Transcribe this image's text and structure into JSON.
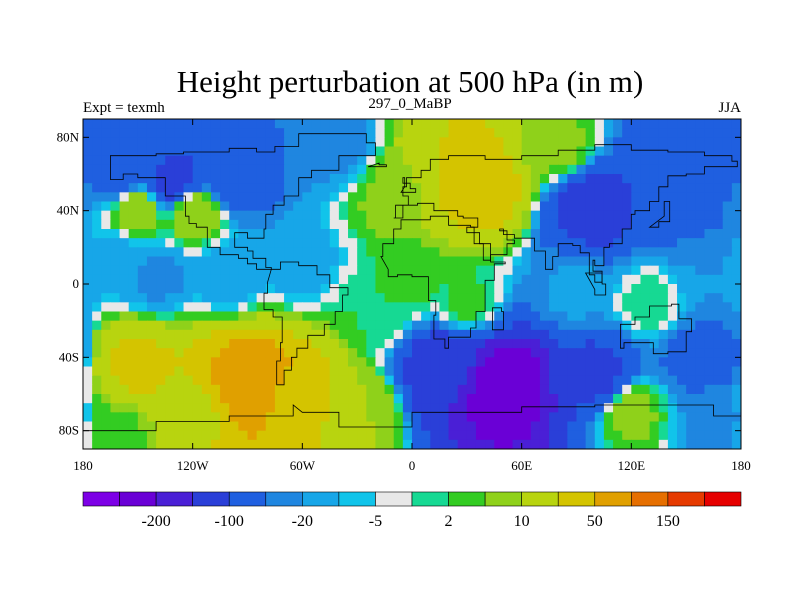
{
  "chart_data": {
    "type": "heatmap",
    "title": "Height perturbation at 500 hPa (in m)",
    "subtitle_left": "Expt = texmh",
    "subtitle_center": "297_0_MaBP",
    "subtitle_right": "JJA",
    "xlim": [
      -180,
      180
    ],
    "ylim": [
      -90,
      90
    ],
    "xticks": [
      {
        "value": -180,
        "label": "180"
      },
      {
        "value": -120,
        "label": "120W"
      },
      {
        "value": -60,
        "label": "60W"
      },
      {
        "value": 0,
        "label": "0"
      },
      {
        "value": 60,
        "label": "60E"
      },
      {
        "value": 120,
        "label": "120E"
      },
      {
        "value": 180,
        "label": "180"
      }
    ],
    "yticks": [
      {
        "value": 80,
        "label": "80N"
      },
      {
        "value": 40,
        "label": "40N"
      },
      {
        "value": 0,
        "label": "0"
      },
      {
        "value": -40,
        "label": "40S"
      },
      {
        "value": -80,
        "label": "80S"
      }
    ],
    "colorbar": {
      "colors": [
        "#7d00e6",
        "#6a00d6",
        "#4a1fd6",
        "#2a3fd8",
        "#1f5fe0",
        "#1f86e0",
        "#17a6e8",
        "#11c4ea",
        "#e8e8e8",
        "#16d993",
        "#33cc22",
        "#8fd11a",
        "#b8d40f",
        "#d4c400",
        "#e0a000",
        "#e66f00",
        "#e63a00",
        "#e60000"
      ],
      "labels": [
        {
          "index": 1,
          "text": "-200"
        },
        {
          "index": 3,
          "text": "-100"
        },
        {
          "index": 5,
          "text": "-20"
        },
        {
          "index": 7,
          "text": "-5"
        },
        {
          "index": 9,
          "text": "2"
        },
        {
          "index": 11,
          "text": "10"
        },
        {
          "index": 13,
          "text": "50"
        },
        {
          "index": 15,
          "text": "150"
        }
      ]
    },
    "anomalies": [
      {
        "lon": -160,
        "lat": 15,
        "value": -6
      },
      {
        "lon": -140,
        "lat": 5,
        "value": -12
      },
      {
        "lon": -100,
        "lat": 5,
        "value": -8
      },
      {
        "lon": -60,
        "lat": 10,
        "value": -7
      },
      {
        "lon": -130,
        "lat": 55,
        "value": -60
      },
      {
        "lon": -100,
        "lat": 60,
        "value": -40
      },
      {
        "lon": -160,
        "lat": 60,
        "value": -25
      },
      {
        "lon": -120,
        "lat": 40,
        "value": 20
      },
      {
        "lon": -150,
        "lat": 40,
        "value": 15
      },
      {
        "lon": -10,
        "lat": 50,
        "value": 12
      },
      {
        "lon": 35,
        "lat": 55,
        "value": 80
      },
      {
        "lon": 20,
        "lat": 65,
        "value": 50
      },
      {
        "lon": 80,
        "lat": 75,
        "value": 12
      },
      {
        "lon": 100,
        "lat": 42,
        "value": -70
      },
      {
        "lon": 150,
        "lat": 40,
        "value": -25
      },
      {
        "lon": 140,
        "lat": 70,
        "value": -25
      },
      {
        "lon": -40,
        "lat": 75,
        "value": -12
      },
      {
        "lon": 0,
        "lat": 0,
        "value": 6
      },
      {
        "lon": 30,
        "lat": -10,
        "value": 6
      },
      {
        "lon": -20,
        "lat": -15,
        "value": 5
      },
      {
        "lon": 90,
        "lat": -5,
        "value": -8
      },
      {
        "lon": 130,
        "lat": -10,
        "value": 4
      },
      {
        "lon": 160,
        "lat": 5,
        "value": -10
      },
      {
        "lon": -90,
        "lat": -55,
        "value": 150
      },
      {
        "lon": -65,
        "lat": -65,
        "value": 90
      },
      {
        "lon": -150,
        "lat": -45,
        "value": 55
      },
      {
        "lon": -120,
        "lat": -70,
        "value": 40
      },
      {
        "lon": -30,
        "lat": -70,
        "value": 20
      },
      {
        "lon": 50,
        "lat": -55,
        "value": -200
      },
      {
        "lon": 20,
        "lat": -45,
        "value": -90
      },
      {
        "lon": 100,
        "lat": -50,
        "value": -60
      },
      {
        "lon": 120,
        "lat": -70,
        "value": 12
      },
      {
        "lon": 160,
        "lat": -40,
        "value": -30
      },
      {
        "lon": 165,
        "lat": -75,
        "value": -12
      },
      {
        "lon": -160,
        "lat": -80,
        "value": 8
      }
    ],
    "continents": [
      [
        [
          -165,
          70
        ],
        [
          -140,
          71
        ],
        [
          -125,
          72
        ],
        [
          -100,
          74
        ],
        [
          -85,
          72
        ],
        [
          -75,
          75
        ],
        [
          -62,
          82
        ],
        [
          -45,
          82
        ],
        [
          -25,
          77
        ],
        [
          -20,
          70
        ],
        [
          -40,
          62
        ],
        [
          -55,
          58
        ],
        [
          -62,
          48
        ],
        [
          -70,
          43
        ],
        [
          -76,
          38
        ],
        [
          -80,
          30
        ],
        [
          -81,
          25
        ],
        [
          -90,
          28
        ],
        [
          -97,
          26
        ],
        [
          -97,
          20
        ],
        [
          -90,
          18
        ],
        [
          -87,
          14
        ],
        [
          -80,
          9
        ],
        [
          -77,
          8
        ],
        [
          -85,
          11
        ],
        [
          -90,
          14
        ],
        [
          -95,
          16
        ],
        [
          -105,
          20
        ],
        [
          -112,
          31
        ],
        [
          -118,
          33
        ],
        [
          -122,
          37
        ],
        [
          -124,
          44
        ],
        [
          -124,
          48
        ],
        [
          -135,
          58
        ],
        [
          -150,
          60
        ],
        [
          -158,
          57
        ],
        [
          -165,
          62
        ]
      ],
      [
        [
          -77,
          8
        ],
        [
          -72,
          12
        ],
        [
          -62,
          10
        ],
        [
          -52,
          5
        ],
        [
          -45,
          -2
        ],
        [
          -35,
          -6
        ],
        [
          -38,
          -15
        ],
        [
          -42,
          -22
        ],
        [
          -48,
          -28
        ],
        [
          -57,
          -35
        ],
        [
          -63,
          -40
        ],
        [
          -66,
          -47
        ],
        [
          -70,
          -55
        ],
        [
          -74,
          -52
        ],
        [
          -74,
          -42
        ],
        [
          -72,
          -32
        ],
        [
          -71,
          -18
        ],
        [
          -76,
          -14
        ],
        [
          -81,
          -5
        ],
        [
          -79,
          1
        ]
      ],
      [
        [
          -10,
          36
        ],
        [
          -9,
          43
        ],
        [
          -2,
          48
        ],
        [
          -5,
          53
        ],
        [
          -3,
          58
        ],
        [
          5,
          62
        ],
        [
          10,
          68
        ],
        [
          20,
          70
        ],
        [
          40,
          68
        ],
        [
          60,
          70
        ],
        [
          80,
          73
        ],
        [
          100,
          76
        ],
        [
          120,
          73
        ],
        [
          140,
          72
        ],
        [
          160,
          70
        ],
        [
          175,
          67
        ],
        [
          178,
          64
        ],
        [
          160,
          60
        ],
        [
          150,
          59
        ],
        [
          140,
          53
        ],
        [
          135,
          45
        ],
        [
          130,
          40
        ],
        [
          122,
          38
        ],
        [
          120,
          30
        ],
        [
          115,
          22
        ],
        [
          108,
          20
        ],
        [
          105,
          10
        ],
        [
          100,
          13
        ],
        [
          99,
          7
        ],
        [
          104,
          1
        ],
        [
          100,
          5
        ],
        [
          97,
          17
        ],
        [
          92,
          21
        ],
        [
          88,
          22
        ],
        [
          80,
          15
        ],
        [
          77,
          8
        ],
        [
          73,
          18
        ],
        [
          67,
          25
        ],
        [
          58,
          25
        ],
        [
          56,
          27
        ],
        [
          50,
          30
        ],
        [
          48,
          29
        ],
        [
          52,
          24
        ],
        [
          56,
          22
        ],
        [
          52,
          16
        ],
        [
          43,
          13
        ],
        [
          39,
          22
        ],
        [
          34,
          28
        ],
        [
          30,
          31
        ],
        [
          36,
          36
        ],
        [
          28,
          37
        ],
        [
          25,
          40
        ],
        [
          20,
          40
        ],
        [
          12,
          44
        ],
        [
          8,
          44
        ],
        [
          3,
          43
        ],
        [
          -5,
          36
        ]
      ],
      [
        [
          -17,
          15
        ],
        [
          -16,
          22
        ],
        [
          -10,
          30
        ],
        [
          -6,
          35
        ],
        [
          10,
          37
        ],
        [
          20,
          32
        ],
        [
          32,
          31
        ],
        [
          34,
          28
        ],
        [
          37,
          22
        ],
        [
          43,
          12
        ],
        [
          51,
          11
        ],
        [
          45,
          2
        ],
        [
          40,
          -5
        ],
        [
          40,
          -15
        ],
        [
          35,
          -24
        ],
        [
          32,
          -29
        ],
        [
          20,
          -35
        ],
        [
          18,
          -30
        ],
        [
          12,
          -17
        ],
        [
          13,
          -9
        ],
        [
          9,
          -1
        ],
        [
          9,
          4
        ],
        [
          0,
          5
        ],
        [
          -8,
          4
        ],
        [
          -13,
          8
        ]
      ],
      [
        [
          114,
          -22
        ],
        [
          122,
          -18
        ],
        [
          130,
          -12
        ],
        [
          137,
          -12
        ],
        [
          142,
          -11
        ],
        [
          146,
          -19
        ],
        [
          153,
          -26
        ],
        [
          150,
          -37
        ],
        [
          140,
          -38
        ],
        [
          132,
          -32
        ],
        [
          116,
          -35
        ],
        [
          114,
          -26
        ]
      ],
      [
        [
          -60,
          -70
        ],
        [
          -40,
          -78
        ],
        [
          0,
          -70
        ],
        [
          60,
          -67
        ],
        [
          100,
          -66
        ],
        [
          140,
          -66
        ],
        [
          165,
          -72
        ],
        [
          180,
          -80
        ],
        [
          180,
          -90
        ],
        [
          -180,
          -90
        ],
        [
          -180,
          -80
        ],
        [
          -140,
          -75
        ],
        [
          -100,
          -72
        ],
        [
          -65,
          -66
        ]
      ],
      [
        [
          95,
          6
        ],
        [
          104,
          0
        ],
        [
          106,
          -6
        ],
        [
          100,
          -3
        ]
      ],
      [
        [
          130,
          31
        ],
        [
          135,
          34
        ],
        [
          141,
          40
        ],
        [
          141,
          45
        ],
        [
          138,
          37
        ]
      ],
      [
        [
          -6,
          50
        ],
        [
          2,
          52
        ],
        [
          -1,
          55
        ],
        [
          -5,
          58
        ],
        [
          -4,
          53
        ]
      ],
      [
        [
          44,
          -25
        ],
        [
          50,
          -15
        ],
        [
          49,
          -13
        ],
        [
          44,
          -17
        ]
      ],
      [
        [
          -24,
          64
        ],
        [
          -14,
          65
        ],
        [
          -18,
          66
        ]
      ]
    ]
  }
}
